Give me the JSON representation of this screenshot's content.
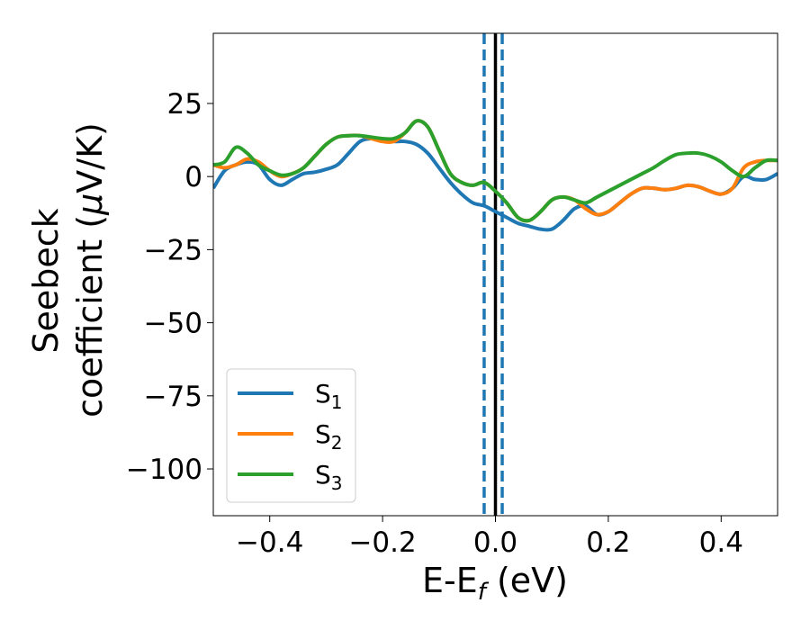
{
  "chart_data": {
    "type": "line",
    "xlabel_main": "E-E",
    "xlabel_sub": "f",
    "xlabel_tail": " (eV)",
    "ylabel_line1": "Seebeck",
    "ylabel_line2_prefix": "coefficient  (",
    "ylabel_mu": "μ",
    "ylabel_line2_suffix": "V/K)",
    "xlim": [
      -0.5,
      0.5
    ],
    "ylim": [
      -116,
      49
    ],
    "xticks": [
      -0.4,
      -0.2,
      0.0,
      0.2,
      0.4
    ],
    "xtick_labels": [
      "−0.4",
      "−0.2",
      "0.0",
      "0.2",
      "0.4"
    ],
    "yticks": [
      25,
      0,
      -25,
      -50,
      -75,
      -100
    ],
    "ytick_labels": [
      "25",
      "0",
      "−25",
      "−50",
      "−75",
      "−100"
    ],
    "grid": false,
    "legend_position": "lower-left",
    "vlines": [
      {
        "x": 0.0,
        "style": "solid",
        "color": "#000000"
      },
      {
        "x": -0.02,
        "style": "dashed",
        "color": "#1f77b4"
      },
      {
        "x": 0.012,
        "style": "dashed",
        "color": "#1f77b4"
      }
    ],
    "series": [
      {
        "name": "S",
        "name_sub": "1",
        "color": "#1f77b4",
        "points": [
          [
            -0.5,
            -4
          ],
          [
            -0.48,
            2
          ],
          [
            -0.46,
            4
          ],
          [
            -0.44,
            5
          ],
          [
            -0.42,
            4
          ],
          [
            -0.4,
            -1
          ],
          [
            -0.38,
            -3
          ],
          [
            -0.36,
            -1
          ],
          [
            -0.34,
            1
          ],
          [
            -0.32,
            1.5
          ],
          [
            -0.3,
            2.5
          ],
          [
            -0.28,
            4
          ],
          [
            -0.26,
            8
          ],
          [
            -0.24,
            12
          ],
          [
            -0.22,
            13
          ],
          [
            -0.2,
            12.5
          ],
          [
            -0.18,
            12
          ],
          [
            -0.16,
            12
          ],
          [
            -0.14,
            11
          ],
          [
            -0.12,
            8
          ],
          [
            -0.1,
            3
          ],
          [
            -0.08,
            -2
          ],
          [
            -0.06,
            -6
          ],
          [
            -0.04,
            -9
          ],
          [
            -0.02,
            -10
          ],
          [
            0.0,
            -12
          ],
          [
            0.02,
            -14
          ],
          [
            0.04,
            -16
          ],
          [
            0.06,
            -17
          ],
          [
            0.08,
            -18
          ],
          [
            0.1,
            -18
          ],
          [
            0.12,
            -15
          ],
          [
            0.14,
            -11
          ],
          [
            0.16,
            -10
          ],
          [
            0.18,
            -13
          ],
          [
            0.2,
            -12
          ],
          [
            0.22,
            -9
          ],
          [
            0.24,
            -6
          ],
          [
            0.26,
            -4
          ],
          [
            0.28,
            -4
          ],
          [
            0.3,
            -4.5
          ],
          [
            0.32,
            -4
          ],
          [
            0.34,
            -3
          ],
          [
            0.36,
            -3.5
          ],
          [
            0.38,
            -5
          ],
          [
            0.4,
            -6
          ],
          [
            0.42,
            -4
          ],
          [
            0.44,
            0
          ],
          [
            0.46,
            -1
          ],
          [
            0.48,
            -1
          ],
          [
            0.5,
            1
          ]
        ]
      },
      {
        "name": "S",
        "name_sub": "2",
        "color": "#ff7f0e",
        "points": [
          [
            -0.5,
            4
          ],
          [
            -0.48,
            3
          ],
          [
            -0.46,
            4
          ],
          [
            -0.44,
            6
          ],
          [
            -0.42,
            5
          ],
          [
            -0.4,
            2
          ],
          [
            -0.38,
            0
          ],
          [
            -0.36,
            1
          ],
          [
            -0.34,
            3
          ],
          [
            -0.32,
            7
          ],
          [
            -0.3,
            11
          ],
          [
            -0.28,
            13.5
          ],
          [
            -0.26,
            14
          ],
          [
            -0.24,
            14
          ],
          [
            -0.22,
            13
          ],
          [
            -0.2,
            12
          ],
          [
            -0.18,
            12
          ],
          [
            -0.16,
            15
          ],
          [
            -0.14,
            19
          ],
          [
            -0.12,
            17
          ],
          [
            -0.1,
            9
          ],
          [
            -0.08,
            1
          ],
          [
            -0.06,
            -2
          ],
          [
            -0.04,
            -3
          ],
          [
            -0.02,
            -2
          ],
          [
            0.0,
            -5
          ],
          [
            0.02,
            -9
          ],
          [
            0.04,
            -14
          ],
          [
            0.06,
            -15
          ],
          [
            0.08,
            -12
          ],
          [
            0.1,
            -8
          ],
          [
            0.12,
            -7
          ],
          [
            0.14,
            -8
          ],
          [
            0.16,
            -11
          ],
          [
            0.18,
            -13
          ],
          [
            0.2,
            -12
          ],
          [
            0.22,
            -9
          ],
          [
            0.24,
            -6
          ],
          [
            0.26,
            -4
          ],
          [
            0.28,
            -4
          ],
          [
            0.3,
            -4.5
          ],
          [
            0.32,
            -4
          ],
          [
            0.34,
            -3
          ],
          [
            0.36,
            -3.5
          ],
          [
            0.38,
            -5
          ],
          [
            0.4,
            -6
          ],
          [
            0.42,
            -4
          ],
          [
            0.44,
            3
          ],
          [
            0.46,
            5
          ],
          [
            0.48,
            5.5
          ],
          [
            0.5,
            5.5
          ]
        ]
      },
      {
        "name": "S",
        "name_sub": "3",
        "color": "#2ca02c",
        "points": [
          [
            -0.5,
            4
          ],
          [
            -0.48,
            5
          ],
          [
            -0.46,
            10
          ],
          [
            -0.44,
            8
          ],
          [
            -0.42,
            4
          ],
          [
            -0.4,
            2
          ],
          [
            -0.38,
            0.5
          ],
          [
            -0.36,
            1
          ],
          [
            -0.34,
            3
          ],
          [
            -0.32,
            7
          ],
          [
            -0.3,
            11
          ],
          [
            -0.28,
            13.5
          ],
          [
            -0.26,
            14
          ],
          [
            -0.24,
            14
          ],
          [
            -0.22,
            13.5
          ],
          [
            -0.2,
            13
          ],
          [
            -0.18,
            13
          ],
          [
            -0.16,
            15
          ],
          [
            -0.14,
            19
          ],
          [
            -0.12,
            17
          ],
          [
            -0.1,
            9
          ],
          [
            -0.08,
            1
          ],
          [
            -0.06,
            -2
          ],
          [
            -0.04,
            -3
          ],
          [
            -0.02,
            -2
          ],
          [
            0.0,
            -5
          ],
          [
            0.02,
            -9
          ],
          [
            0.04,
            -14
          ],
          [
            0.06,
            -15
          ],
          [
            0.08,
            -12
          ],
          [
            0.1,
            -8
          ],
          [
            0.12,
            -7
          ],
          [
            0.14,
            -8
          ],
          [
            0.16,
            -9
          ],
          [
            0.18,
            -7
          ],
          [
            0.2,
            -5
          ],
          [
            0.22,
            -3
          ],
          [
            0.24,
            -1
          ],
          [
            0.26,
            1
          ],
          [
            0.28,
            3
          ],
          [
            0.3,
            5.5
          ],
          [
            0.32,
            7.5
          ],
          [
            0.34,
            8
          ],
          [
            0.36,
            8
          ],
          [
            0.38,
            7
          ],
          [
            0.4,
            5
          ],
          [
            0.42,
            2
          ],
          [
            0.44,
            0
          ],
          [
            0.46,
            3
          ],
          [
            0.48,
            5.5
          ],
          [
            0.5,
            5.5
          ]
        ]
      }
    ]
  }
}
